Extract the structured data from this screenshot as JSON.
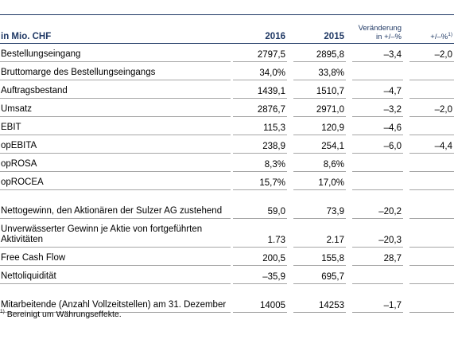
{
  "table": {
    "header": {
      "unit": "in Mio. CHF",
      "year1": "2016",
      "year2": "2015",
      "change_line1": "Veränderung",
      "change_line2": "in +/–%",
      "change_fx": "+/–%",
      "change_fx_note": "1)"
    },
    "rows": [
      {
        "label": "Bestellungseingang",
        "v2016": "2797,5",
        "v2015": "2895,8",
        "change": "–3,4",
        "change_fx": "–2,0"
      },
      {
        "label": "Bruttomarge des Bestellungseingangs",
        "v2016": "34,0%",
        "v2015": "33,8%",
        "change": "",
        "change_fx": ""
      },
      {
        "label": "Auftragsbestand",
        "v2016": "1439,1",
        "v2015": "1510,7",
        "change": "–4,7",
        "change_fx": ""
      },
      {
        "label": "Umsatz",
        "v2016": "2876,7",
        "v2015": "2971,0",
        "change": "–3,2",
        "change_fx": "–2,0"
      },
      {
        "label": "EBIT",
        "v2016": "115,3",
        "v2015": "120,9",
        "change": "–4,6",
        "change_fx": ""
      },
      {
        "label": "opEBITA",
        "v2016": "238,9",
        "v2015": "254,1",
        "change": "–6,0",
        "change_fx": "–4,4"
      },
      {
        "label": "opROSA",
        "v2016": "8,3%",
        "v2015": "8,6%",
        "change": "",
        "change_fx": ""
      },
      {
        "label": "opROCEA",
        "v2016": "15,7%",
        "v2015": "17,0%",
        "change": "",
        "change_fx": ""
      },
      {
        "label": "Nettogewinn, den Aktionären der Sulzer AG zustehend",
        "v2016": "59,0",
        "v2015": "73,9",
        "change": "–20,2",
        "change_fx": ""
      },
      {
        "label": "Unverwässerter Gewinn je Aktie von fortgeführten Aktivitäten",
        "v2016": "1.73",
        "v2015": "2.17",
        "change": "–20,3",
        "change_fx": ""
      },
      {
        "label": "Free Cash Flow",
        "v2016": "200,5",
        "v2015": "155,8",
        "change": "28,7",
        "change_fx": ""
      },
      {
        "label": "Nettoliquidität",
        "v2016": "–35,9",
        "v2015": "695,7",
        "change": "",
        "change_fx": ""
      },
      {
        "label": "Mitarbeitende (Anzahl Vollzeitstellen) am 31. Dezember",
        "v2016": "14005",
        "v2015": "14253",
        "change": "–1,7",
        "change_fx": ""
      }
    ]
  },
  "footnote": {
    "marker": "1)",
    "text": "Bereinigt um Währungseffekte."
  }
}
